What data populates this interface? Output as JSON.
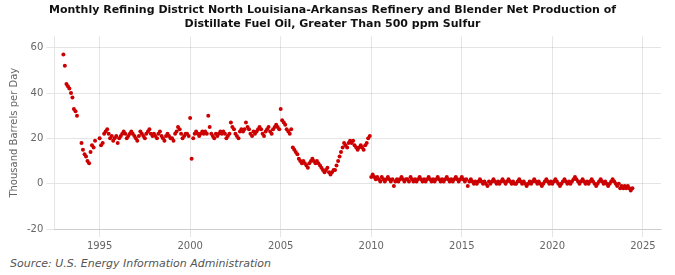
{
  "chart_data": {
    "type": "scatter",
    "title": "Monthly Refining District North Louisiana-Arkansas Refinery and Blender Net Production of\nDistillate Fuel Oil, Greater Than 500 ppm Sulfur",
    "ylabel": "Thousand Barrels per Day",
    "annotation": "Source: U.S. Energy Information Administration",
    "color": "#cc0000",
    "grid": true,
    "xlim": [
      1992.5,
      2026.0
    ],
    "xticks": [
      1995,
      2000,
      2005,
      2010,
      2015,
      2020,
      2025
    ],
    "ylim": [
      -20,
      65
    ],
    "yticks": [
      -20,
      0,
      20,
      40,
      60
    ],
    "x": [
      1993.0,
      1993.08,
      1993.17,
      1993.25,
      1993.33,
      1993.42,
      1993.5,
      1993.58,
      1993.67,
      1993.75,
      1994.0,
      1994.08,
      1994.17,
      1994.25,
      1994.33,
      1994.42,
      1994.5,
      1994.58,
      1994.67,
      1994.75,
      1995.0,
      1995.08,
      1995.17,
      1995.25,
      1995.33,
      1995.42,
      1995.5,
      1995.58,
      1995.67,
      1995.75,
      1995.83,
      1995.92,
      1996.0,
      1996.08,
      1996.17,
      1996.25,
      1996.33,
      1996.42,
      1996.5,
      1996.58,
      1996.67,
      1996.75,
      1996.83,
      1996.92,
      1997.0,
      1997.08,
      1997.17,
      1997.25,
      1997.33,
      1997.42,
      1997.5,
      1997.58,
      1997.67,
      1997.75,
      1997.83,
      1997.92,
      1998.0,
      1998.08,
      1998.17,
      1998.25,
      1998.33,
      1998.42,
      1998.5,
      1998.58,
      1998.67,
      1998.75,
      1998.83,
      1998.92,
      1999.0,
      1999.08,
      1999.17,
      1999.25,
      1999.33,
      1999.42,
      1999.5,
      1999.58,
      1999.67,
      1999.75,
      1999.83,
      1999.92,
      2000.0,
      2000.08,
      2000.17,
      2000.25,
      2000.33,
      2000.42,
      2000.5,
      2000.58,
      2000.67,
      2000.75,
      2000.83,
      2000.92,
      2001.0,
      2001.08,
      2001.17,
      2001.25,
      2001.33,
      2001.42,
      2001.5,
      2001.58,
      2001.67,
      2001.75,
      2001.83,
      2001.92,
      2002.0,
      2002.08,
      2002.17,
      2002.25,
      2002.33,
      2002.42,
      2002.5,
      2002.58,
      2002.67,
      2002.75,
      2002.83,
      2002.92,
      2003.0,
      2003.08,
      2003.17,
      2003.25,
      2003.33,
      2003.42,
      2003.5,
      2003.58,
      2003.67,
      2003.75,
      2003.83,
      2003.92,
      2004.0,
      2004.08,
      2004.17,
      2004.25,
      2004.33,
      2004.42,
      2004.5,
      2004.58,
      2004.67,
      2004.75,
      2004.83,
      2004.92,
      2005.0,
      2005.08,
      2005.17,
      2005.25,
      2005.33,
      2005.42,
      2005.5,
      2005.58,
      2005.67,
      2005.75,
      2005.83,
      2005.92,
      2006.0,
      2006.08,
      2006.17,
      2006.25,
      2006.33,
      2006.42,
      2006.5,
      2006.58,
      2006.67,
      2006.75,
      2006.83,
      2006.92,
      2007.0,
      2007.08,
      2007.17,
      2007.25,
      2007.33,
      2007.42,
      2007.5,
      2007.58,
      2007.67,
      2007.75,
      2007.83,
      2007.92,
      2008.0,
      2008.08,
      2008.17,
      2008.25,
      2008.33,
      2008.42,
      2008.5,
      2008.58,
      2008.67,
      2008.75,
      2008.83,
      2008.92,
      2009.0,
      2009.08,
      2009.17,
      2009.25,
      2009.33,
      2009.42,
      2009.5,
      2009.58,
      2009.67,
      2009.75,
      2009.83,
      2009.92,
      2010.0,
      2010.08,
      2010.17,
      2010.25,
      2010.33,
      2010.42,
      2010.5,
      2010.58,
      2010.67,
      2010.75,
      2010.83,
      2010.92,
      2011.0,
      2011.08,
      2011.17,
      2011.25,
      2011.33,
      2011.42,
      2011.5,
      2011.58,
      2011.67,
      2011.75,
      2011.83,
      2011.92,
      2012.0,
      2012.08,
      2012.17,
      2012.25,
      2012.33,
      2012.42,
      2012.5,
      2012.58,
      2012.67,
      2012.75,
      2012.83,
      2012.92,
      2013.0,
      2013.08,
      2013.17,
      2013.25,
      2013.33,
      2013.42,
      2013.5,
      2013.58,
      2013.67,
      2013.75,
      2013.83,
      2013.92,
      2014.0,
      2014.08,
      2014.17,
      2014.25,
      2014.33,
      2014.42,
      2014.5,
      2014.58,
      2014.67,
      2014.75,
      2014.83,
      2014.92,
      2015.0,
      2015.08,
      2015.17,
      2015.25,
      2015.33,
      2015.42,
      2015.5,
      2015.58,
      2015.67,
      2015.75,
      2015.83,
      2015.92,
      2016.0,
      2016.08,
      2016.17,
      2016.25,
      2016.33,
      2016.42,
      2016.5,
      2016.58,
      2016.67,
      2016.75,
      2016.83,
      2016.92,
      2017.0,
      2017.08,
      2017.17,
      2017.25,
      2017.33,
      2017.42,
      2017.5,
      2017.58,
      2017.67,
      2017.75,
      2017.83,
      2017.92,
      2018.0,
      2018.08,
      2018.17,
      2018.25,
      2018.33,
      2018.42,
      2018.5,
      2018.58,
      2018.67,
      2018.75,
      2018.83,
      2018.92,
      2019.0,
      2019.08,
      2019.17,
      2019.25,
      2019.33,
      2019.42,
      2019.5,
      2019.58,
      2019.67,
      2019.75,
      2019.83,
      2019.92,
      2020.0,
      2020.08,
      2020.17,
      2020.25,
      2020.33,
      2020.42,
      2020.5,
      2020.58,
      2020.67,
      2020.75,
      2020.83,
      2020.92,
      2021.0,
      2021.08,
      2021.17,
      2021.25,
      2021.33,
      2021.42,
      2021.5,
      2021.58,
      2021.67,
      2021.75,
      2021.83,
      2021.92,
      2022.0,
      2022.08,
      2022.17,
      2022.25,
      2022.33,
      2022.42,
      2022.5,
      2022.58,
      2022.67,
      2022.75,
      2022.83,
      2022.92,
      2023.0,
      2023.08,
      2023.17,
      2023.25,
      2023.33,
      2023.42,
      2023.5,
      2023.58,
      2023.67,
      2023.75,
      2023.83,
      2023.92,
      2024.0,
      2024.08,
      2024.17,
      2024.25,
      2024.33,
      2024.42
    ],
    "values": [
      57,
      52,
      44,
      43,
      42,
      40,
      38,
      33,
      32,
      30,
      18,
      15,
      13,
      12,
      10,
      9,
      14,
      17,
      16,
      19,
      20,
      17,
      18,
      22,
      23,
      24,
      22,
      20,
      21,
      19,
      20,
      21,
      18,
      20,
      21,
      22,
      23,
      22,
      20,
      21,
      22,
      23,
      22,
      21,
      20,
      19,
      21,
      23,
      22,
      21,
      20,
      22,
      23,
      24,
      22,
      21,
      22,
      21,
      20,
      22,
      23,
      21,
      20,
      19,
      21,
      22,
      21,
      20,
      20,
      19,
      22,
      23,
      25,
      24,
      22,
      20,
      21,
      22,
      22,
      21,
      29,
      11,
      20,
      22,
      23,
      22,
      21,
      22,
      23,
      22,
      23,
      22,
      30,
      25,
      22,
      21,
      20,
      22,
      21,
      22,
      23,
      22,
      23,
      22,
      20,
      21,
      22,
      27,
      25,
      24,
      22,
      21,
      20,
      23,
      24,
      23,
      24,
      27,
      25,
      24,
      22,
      21,
      23,
      22,
      23,
      24,
      25,
      24,
      22,
      21,
      23,
      24,
      25,
      23,
      22,
      24,
      25,
      26,
      25,
      24,
      33,
      28,
      27,
      26,
      24,
      23,
      22,
      24,
      16,
      15,
      14,
      13,
      11,
      10,
      9,
      10,
      9,
      8,
      7,
      9,
      10,
      11,
      10,
      9,
      10,
      9,
      8,
      7,
      6,
      5,
      6,
      7,
      5,
      4,
      5,
      6,
      6,
      8,
      10,
      12,
      14,
      16,
      18,
      17,
      16,
      18,
      19,
      18,
      19,
      17,
      16,
      15,
      16,
      17,
      16,
      15,
      17,
      18,
      20,
      21,
      3,
      4,
      3,
      2,
      3,
      2,
      1,
      3,
      2,
      1,
      2,
      3,
      2,
      1,
      2,
      -1,
      1,
      2,
      1,
      2,
      3,
      2,
      1,
      2,
      2,
      1,
      3,
      2,
      1,
      2,
      1,
      2,
      3,
      2,
      1,
      2,
      1,
      2,
      3,
      2,
      1,
      2,
      1,
      2,
      3,
      2,
      1,
      2,
      1,
      2,
      3,
      2,
      1,
      2,
      1,
      2,
      3,
      2,
      1,
      2,
      3,
      2,
      1,
      2,
      -1,
      1,
      2,
      1,
      0,
      1,
      0,
      1,
      2,
      1,
      0,
      1,
      0,
      -1,
      1,
      0,
      1,
      2,
      1,
      0,
      1,
      0,
      1,
      2,
      1,
      0,
      1,
      2,
      1,
      0,
      1,
      0,
      0,
      1,
      2,
      1,
      0,
      1,
      0,
      -1,
      0,
      1,
      0,
      1,
      2,
      1,
      0,
      1,
      0,
      -1,
      0,
      1,
      2,
      1,
      0,
      1,
      0,
      1,
      2,
      1,
      0,
      -1,
      0,
      1,
      2,
      1,
      0,
      1,
      0,
      1,
      2,
      3,
      2,
      1,
      0,
      1,
      2,
      1,
      0,
      1,
      0,
      1,
      2,
      1,
      0,
      -1,
      0,
      1,
      2,
      1,
      0,
      1,
      0,
      -1,
      0,
      1,
      2,
      1,
      0,
      -1,
      0,
      -2,
      -1,
      -2,
      -1,
      -2,
      -1,
      -2,
      -3,
      -2
    ]
  }
}
